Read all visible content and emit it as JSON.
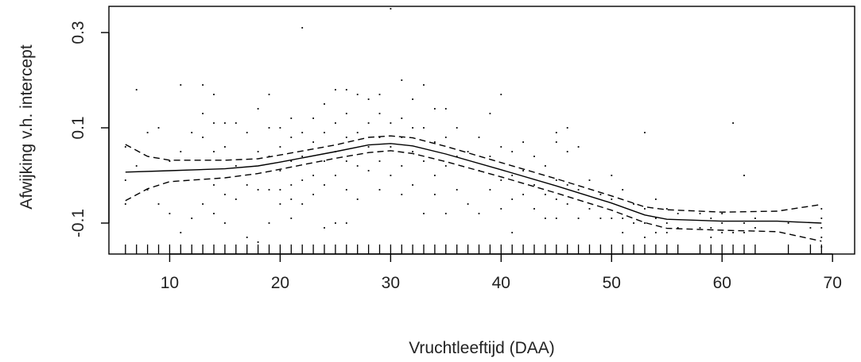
{
  "chart_data": {
    "type": "line",
    "title": "",
    "xlabel": "Vruchtleeftijd (DAA)",
    "ylabel": "Afwijking v.h. intercept",
    "xlim": [
      4.5,
      72
    ],
    "ylim": [
      -0.165,
      0.355
    ],
    "x_ticks": [
      10,
      20,
      30,
      40,
      50,
      60,
      70
    ],
    "x_tick_labels": [
      "10",
      "20",
      "30",
      "40",
      "50",
      "60",
      "70"
    ],
    "y_ticks": [
      -0.1,
      0.1,
      0.3
    ],
    "y_tick_labels": [
      "-0.1",
      "0.1",
      "0.3"
    ],
    "grid": false,
    "legend": "none",
    "colors": {
      "line": "#000000",
      "points": "#000000",
      "frame": "#000000"
    },
    "series": [
      {
        "role": "fit",
        "style": "solid",
        "x": [
          6,
          10,
          15,
          18,
          20,
          25,
          28,
          30,
          32,
          35,
          40,
          45,
          50,
          53,
          55,
          60,
          65,
          69
        ],
        "y": [
          0.007,
          0.01,
          0.014,
          0.02,
          0.028,
          0.05,
          0.064,
          0.067,
          0.062,
          0.045,
          0.012,
          -0.022,
          -0.058,
          -0.083,
          -0.092,
          -0.096,
          -0.096,
          -0.1
        ]
      },
      {
        "role": "upper_band",
        "style": "dashed",
        "x": [
          6,
          8,
          10,
          15,
          18,
          20,
          25,
          28,
          30,
          32,
          35,
          40,
          45,
          50,
          53,
          55,
          60,
          65,
          69
        ],
        "y": [
          0.065,
          0.04,
          0.032,
          0.032,
          0.035,
          0.043,
          0.064,
          0.08,
          0.083,
          0.079,
          0.061,
          0.027,
          -0.007,
          -0.043,
          -0.066,
          -0.072,
          -0.077,
          -0.075,
          -0.061
        ]
      },
      {
        "role": "lower_band",
        "style": "dashed",
        "x": [
          6,
          8,
          10,
          15,
          18,
          20,
          25,
          28,
          30,
          32,
          35,
          40,
          45,
          50,
          53,
          55,
          60,
          65,
          69
        ],
        "y": [
          -0.053,
          -0.028,
          -0.013,
          -0.005,
          0.004,
          0.013,
          0.036,
          0.048,
          0.052,
          0.046,
          0.029,
          -0.003,
          -0.037,
          -0.073,
          -0.099,
          -0.111,
          -0.115,
          -0.118,
          -0.138
        ]
      }
    ],
    "rug_x": [
      6,
      7,
      8,
      9,
      10,
      11,
      12,
      13,
      14,
      15,
      16,
      17,
      18,
      19,
      20,
      21,
      22,
      23,
      24,
      25,
      26,
      27,
      28,
      29,
      30,
      31,
      32,
      33,
      34,
      35,
      36,
      37,
      38,
      39,
      40,
      41,
      42,
      43,
      44,
      45,
      46,
      47,
      48,
      49,
      50,
      51,
      52,
      53,
      54,
      55,
      56,
      58,
      59,
      60,
      61,
      62,
      63,
      66,
      68,
      69
    ],
    "points": [
      [
        6,
        0.06
      ],
      [
        6,
        -0.01
      ],
      [
        6,
        -0.06
      ],
      [
        7,
        0.18
      ],
      [
        7,
        0.02
      ],
      [
        8,
        0.09
      ],
      [
        8,
        -0.03
      ],
      [
        9,
        0.1
      ],
      [
        9,
        -0.06
      ],
      [
        10,
        -0.08
      ],
      [
        10,
        0.03
      ],
      [
        11,
        0.19
      ],
      [
        11,
        -0.12
      ],
      [
        11,
        0.05
      ],
      [
        12,
        0.09
      ],
      [
        12,
        -0.09
      ],
      [
        13,
        0.19
      ],
      [
        13,
        0.13
      ],
      [
        13,
        0.08
      ],
      [
        13,
        -0.06
      ],
      [
        14,
        0.17
      ],
      [
        14,
        0.11
      ],
      [
        14,
        0.05
      ],
      [
        14,
        -0.02
      ],
      [
        14,
        -0.08
      ],
      [
        15,
        0.11
      ],
      [
        15,
        0.06
      ],
      [
        15,
        -0.04
      ],
      [
        15,
        -0.1
      ],
      [
        16,
        0.11
      ],
      [
        16,
        0.02
      ],
      [
        16,
        -0.05
      ],
      [
        17,
        0.09
      ],
      [
        17,
        -0.02
      ],
      [
        17,
        -0.13
      ],
      [
        18,
        0.14
      ],
      [
        18,
        0.05
      ],
      [
        18,
        -0.03
      ],
      [
        18,
        -0.14
      ],
      [
        19,
        0.17
      ],
      [
        19,
        0.1
      ],
      [
        19,
        0.04
      ],
      [
        19,
        -0.03
      ],
      [
        19,
        -0.1
      ],
      [
        20,
        0.1
      ],
      [
        20,
        0.06
      ],
      [
        20,
        0.01
      ],
      [
        20,
        -0.03
      ],
      [
        20,
        -0.06
      ],
      [
        21,
        0.12
      ],
      [
        21,
        0.08
      ],
      [
        21,
        0.03
      ],
      [
        21,
        -0.02
      ],
      [
        21,
        -0.05
      ],
      [
        21,
        -0.09
      ],
      [
        22,
        0.31
      ],
      [
        22,
        0.09
      ],
      [
        22,
        0.04
      ],
      [
        22,
        -0.01
      ],
      [
        22,
        -0.06
      ],
      [
        23,
        0.12
      ],
      [
        23,
        0.07
      ],
      [
        23,
        0.0
      ],
      [
        23,
        -0.04
      ],
      [
        24,
        0.15
      ],
      [
        24,
        0.09
      ],
      [
        24,
        0.03
      ],
      [
        24,
        -0.02
      ],
      [
        24,
        -0.11
      ],
      [
        25,
        0.18
      ],
      [
        25,
        0.11
      ],
      [
        25,
        0.05
      ],
      [
        25,
        0.0
      ],
      [
        25,
        -0.1
      ],
      [
        26,
        0.18
      ],
      [
        26,
        0.13
      ],
      [
        26,
        0.08
      ],
      [
        26,
        0.03
      ],
      [
        26,
        -0.03
      ],
      [
        26,
        -0.1
      ],
      [
        27,
        0.17
      ],
      [
        27,
        0.09
      ],
      [
        27,
        0.02
      ],
      [
        27,
        -0.05
      ],
      [
        28,
        0.16
      ],
      [
        28,
        0.11
      ],
      [
        28,
        0.06
      ],
      [
        28,
        0.01
      ],
      [
        29,
        0.17
      ],
      [
        29,
        0.13
      ],
      [
        29,
        0.08
      ],
      [
        29,
        0.03
      ],
      [
        29,
        -0.03
      ],
      [
        30,
        0.35
      ],
      [
        30,
        0.11
      ],
      [
        30,
        0.06
      ],
      [
        30,
        0.0
      ],
      [
        31,
        0.2
      ],
      [
        31,
        0.12
      ],
      [
        31,
        0.08
      ],
      [
        31,
        0.02
      ],
      [
        31,
        -0.04
      ],
      [
        32,
        0.16
      ],
      [
        32,
        0.1
      ],
      [
        32,
        0.05
      ],
      [
        32,
        -0.02
      ],
      [
        33,
        0.19
      ],
      [
        33,
        0.1
      ],
      [
        33,
        0.03
      ],
      [
        33,
        -0.08
      ],
      [
        34,
        0.14
      ],
      [
        34,
        0.07
      ],
      [
        34,
        0.0
      ],
      [
        34,
        -0.04
      ],
      [
        35,
        0.14
      ],
      [
        35,
        0.08
      ],
      [
        35,
        0.02
      ],
      [
        35,
        -0.08
      ],
      [
        36,
        0.1
      ],
      [
        36,
        0.04
      ],
      [
        36,
        -0.03
      ],
      [
        37,
        0.05
      ],
      [
        37,
        -0.06
      ],
      [
        38,
        0.08
      ],
      [
        38,
        0.01
      ],
      [
        38,
        -0.08
      ],
      [
        39,
        0.13
      ],
      [
        39,
        0.04
      ],
      [
        39,
        -0.03
      ],
      [
        40,
        0.17
      ],
      [
        40,
        0.06
      ],
      [
        40,
        -0.01
      ],
      [
        40,
        -0.07
      ],
      [
        41,
        0.05
      ],
      [
        41,
        0.0
      ],
      [
        41,
        -0.05
      ],
      [
        41,
        -0.12
      ],
      [
        42,
        0.07
      ],
      [
        42,
        0.01
      ],
      [
        42,
        -0.04
      ],
      [
        43,
        0.04
      ],
      [
        43,
        -0.02
      ],
      [
        43,
        -0.07
      ],
      [
        44,
        0.02
      ],
      [
        44,
        -0.04
      ],
      [
        44,
        -0.09
      ],
      [
        45,
        0.09
      ],
      [
        45,
        0.07
      ],
      [
        45,
        -0.01
      ],
      [
        45,
        -0.05
      ],
      [
        45,
        -0.09
      ],
      [
        46,
        0.1
      ],
      [
        46,
        0.05
      ],
      [
        46,
        -0.02
      ],
      [
        46,
        -0.06
      ],
      [
        47,
        0.06
      ],
      [
        47,
        -0.03
      ],
      [
        47,
        -0.09
      ],
      [
        48,
        -0.01
      ],
      [
        48,
        -0.07
      ],
      [
        49,
        -0.04
      ],
      [
        49,
        -0.09
      ],
      [
        50,
        0.0
      ],
      [
        50,
        -0.05
      ],
      [
        50,
        -0.09
      ],
      [
        51,
        -0.03
      ],
      [
        51,
        -0.09
      ],
      [
        51,
        -0.12
      ],
      [
        52,
        -0.06
      ],
      [
        52,
        -0.1
      ],
      [
        53,
        0.09
      ],
      [
        53,
        -0.07
      ],
      [
        53,
        -0.1
      ],
      [
        53,
        -0.13
      ],
      [
        54,
        -0.05
      ],
      [
        54,
        -0.09
      ],
      [
        54,
        -0.12
      ],
      [
        55,
        -0.07
      ],
      [
        55,
        -0.1
      ],
      [
        55,
        -0.12
      ],
      [
        56,
        -0.08
      ],
      [
        56,
        -0.11
      ],
      [
        58,
        -0.08
      ],
      [
        58,
        -0.11
      ],
      [
        59,
        -0.09
      ],
      [
        59,
        -0.11
      ],
      [
        59,
        -0.13
      ],
      [
        60,
        -0.08
      ],
      [
        60,
        -0.1
      ],
      [
        60,
        -0.12
      ],
      [
        61,
        0.11
      ],
      [
        61,
        -0.12
      ],
      [
        62,
        0.0
      ],
      [
        62,
        -0.1
      ],
      [
        62,
        -0.12
      ],
      [
        63,
        -0.09
      ],
      [
        63,
        -0.11
      ],
      [
        66,
        -0.1
      ],
      [
        68,
        -0.11
      ],
      [
        69,
        -0.07
      ],
      [
        69,
        -0.09
      ],
      [
        69,
        -0.11
      ],
      [
        69,
        -0.13
      ],
      [
        69,
        -0.15
      ]
    ]
  }
}
